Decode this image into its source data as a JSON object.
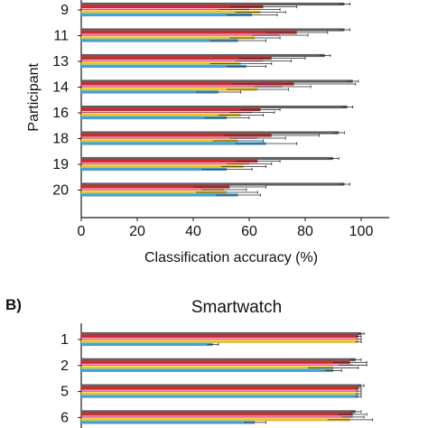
{
  "colors": {
    "axis": "#1a1a1a",
    "error": "#2a2a2a",
    "series": [
      "#5f5f5f",
      "#d6282b",
      "#e43f8f",
      "#f2c318",
      "#3ca5dc"
    ]
  },
  "panel_b_label": "B)",
  "chart_data": [
    {
      "type": "bar",
      "orientation": "horizontal",
      "title": "",
      "ylabel": "Participant",
      "xlabel": "Classification accuracy (%)",
      "xlim": [
        0,
        110
      ],
      "xticks": [
        0,
        20,
        40,
        60,
        80,
        100
      ],
      "categories": [
        "9",
        "11",
        "13",
        "14",
        "16",
        "18",
        "19",
        "20"
      ],
      "series": [
        {
          "values": [
            94,
            94,
            87,
            97,
            95,
            92,
            90,
            94
          ]
        },
        {
          "values": [
            65,
            77,
            68,
            76,
            64,
            68,
            63,
            53
          ]
        },
        {
          "values": [
            60,
            71,
            65,
            72,
            61,
            63,
            60,
            51
          ]
        },
        {
          "values": [
            64,
            62,
            57,
            63,
            57,
            56,
            58,
            52
          ]
        },
        {
          "values": [
            61,
            56,
            59,
            49,
            52,
            66,
            52,
            56
          ]
        }
      ],
      "errors": [
        [
          2,
          2,
          2,
          2,
          2,
          2,
          2,
          2
        ],
        [
          12,
          11,
          12,
          22,
          7,
          17,
          8,
          13
        ],
        [
          11,
          10,
          10,
          10,
          8,
          10,
          8,
          8
        ],
        [
          9,
          9,
          11,
          11,
          8,
          9,
          8,
          11
        ],
        [
          9,
          10,
          7,
          8,
          8,
          11,
          9,
          8
        ]
      ]
    },
    {
      "type": "bar",
      "orientation": "horizontal",
      "title": "Smartwatch",
      "xlim": [
        0,
        110
      ],
      "categories": [
        "1",
        "2",
        "5",
        "6"
      ],
      "series": [
        {
          "values": [
            100,
            98,
            100,
            98
          ]
        },
        {
          "values": [
            99,
            96,
            99,
            97
          ]
        },
        {
          "values": [
            99,
            97,
            99,
            97
          ]
        },
        {
          "values": [
            99,
            90,
            99,
            96
          ]
        },
        {
          "values": [
            47,
            90,
            99,
            62
          ]
        }
      ],
      "errors": [
        [
          1,
          2,
          1,
          2
        ],
        [
          1,
          6,
          1,
          5
        ],
        [
          1,
          5,
          1,
          4
        ],
        [
          1,
          9,
          1,
          8
        ],
        [
          2,
          3,
          1,
          4
        ]
      ]
    }
  ]
}
